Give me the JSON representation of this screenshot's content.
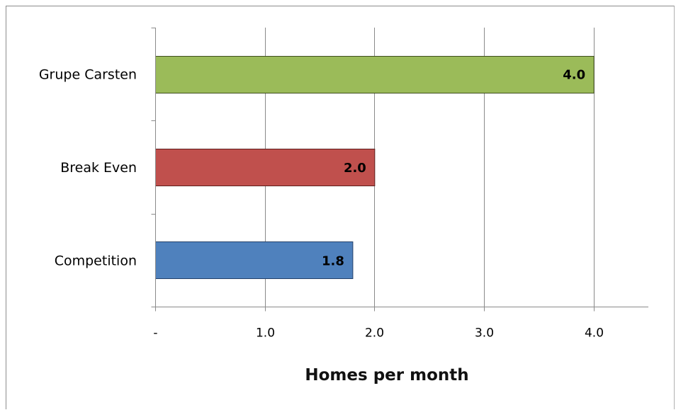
{
  "chart_data": {
    "type": "bar",
    "orientation": "horizontal",
    "categories": [
      "Grupe Carsten",
      "Break Even",
      "Competition"
    ],
    "values": [
      4.0,
      2.0,
      1.8
    ],
    "data_labels": [
      "4.0",
      "2.0",
      "1.8"
    ],
    "colors": [
      "#9bbb59",
      "#c0504d",
      "#4f81bd"
    ],
    "border_colors": [
      "#3f4f1e",
      "#5e1e1c",
      "#24416a"
    ],
    "title": "",
    "xlabel": "Homes per month",
    "ylabel": "",
    "xlim": [
      0,
      4.5
    ],
    "x_ticks": [
      0,
      1,
      2,
      3,
      4
    ],
    "x_tick_labels": [
      "-",
      "1.0",
      "2.0",
      "3.0",
      "4.0"
    ],
    "grid": "vertical major gridlines",
    "legend": "none"
  }
}
